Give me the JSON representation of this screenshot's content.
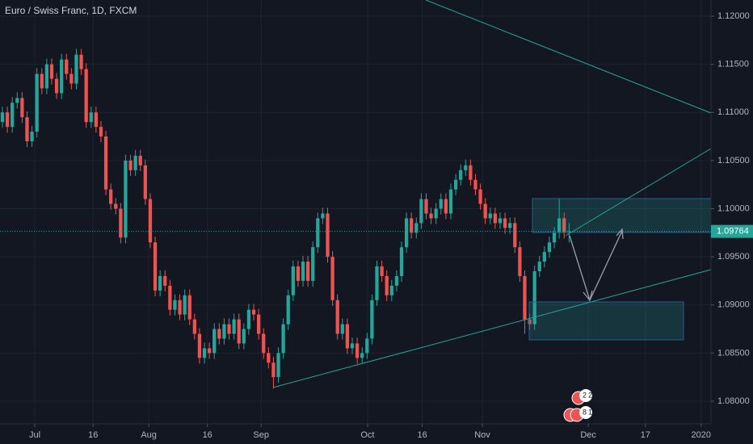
{
  "chart_data": {
    "type": "candlestick",
    "title": "Euro / Swiss Franc, 1D, FXCM",
    "up_color": "#26a69a",
    "down_color": "#ef5350",
    "grid": true,
    "open": [
      1.109,
      1.11,
      1.1085,
      1.111,
      1.1115,
      1.1095,
      1.107,
      1.108,
      1.114,
      1.1125,
      1.115,
      1.1135,
      1.112,
      1.1155,
      1.114,
      1.113,
      1.116,
      1.1145,
      1.109,
      1.11,
      1.1085,
      1.1075,
      1.102,
      1.1005,
      1.1,
      1.097,
      1.105,
      1.104,
      1.1055,
      1.1045,
      1.101,
      1.0965,
      1.0915,
      1.093,
      1.092,
      1.0895,
      1.0905,
      1.089,
      1.091,
      1.0885,
      1.087,
      1.0845,
      1.0855,
      1.085,
      1.0875,
      1.0865,
      1.088,
      1.087,
      1.0885,
      1.086,
      1.0875,
      1.0895,
      1.089,
      1.087,
      1.085,
      1.084,
      1.0825,
      1.085,
      1.088,
      1.091,
      1.094,
      1.0925,
      1.0945,
      1.0925,
      1.096,
      1.099,
      1.0995,
      1.095,
      1.0905,
      1.087,
      1.088,
      1.0855,
      1.086,
      1.0845,
      1.085,
      1.0865,
      1.0905,
      1.094,
      1.093,
      1.091,
      1.092,
      1.093,
      1.096,
      1.099,
      1.0975,
      1.0985,
      1.101,
      1.0995,
      1.099,
      1.1,
      1.101,
      1.0995,
      1.102,
      1.103,
      1.104,
      1.1045,
      1.103,
      1.102,
      1.1005,
      1.099,
      1.0995,
      1.0985,
      1.099,
      1.098,
      1.0985,
      1.096,
      1.093,
      1.0885,
      1.088,
      1.0935,
      1.0945,
      1.0955,
      1.0965,
      1.0975,
      1.099,
      1.0975
    ],
    "high": [
      1.1106,
      1.1106,
      1.1116,
      1.1121,
      1.1121,
      1.1101,
      1.1086,
      1.1146,
      1.1146,
      1.1156,
      1.1156,
      1.1141,
      1.1161,
      1.1161,
      1.1146,
      1.1166,
      1.1166,
      1.1151,
      1.1106,
      1.1106,
      1.1091,
      1.1081,
      1.1026,
      1.1011,
      1.1006,
      1.1056,
      1.1056,
      1.1061,
      1.1061,
      1.1051,
      1.1016,
      1.0971,
      1.0936,
      1.0936,
      1.0926,
      1.0911,
      1.0911,
      1.0916,
      1.0916,
      1.0891,
      1.0876,
      1.0861,
      1.0861,
      1.0881,
      1.0881,
      1.0886,
      1.0886,
      1.0891,
      1.0891,
      1.0881,
      1.0901,
      1.0901,
      1.0896,
      1.0876,
      1.0856,
      1.0846,
      1.0856,
      1.0886,
      1.0916,
      1.0946,
      1.0946,
      1.0951,
      1.0951,
      1.0966,
      1.0996,
      1.1001,
      1.1001,
      1.0956,
      1.0911,
      1.0886,
      1.0886,
      1.0866,
      1.0866,
      1.0856,
      1.0871,
      1.0911,
      1.0946,
      1.0946,
      1.0936,
      1.0926,
      1.0936,
      1.0966,
      1.0996,
      1.0996,
      1.0991,
      1.1016,
      1.1016,
      1.1001,
      1.1006,
      1.1016,
      1.1016,
      1.1026,
      1.1036,
      1.1046,
      1.1051,
      1.1051,
      1.1036,
      1.1026,
      1.1011,
      1.1001,
      1.1001,
      1.0996,
      1.0996,
      1.0991,
      1.0991,
      1.0966,
      1.0936,
      1.0891,
      1.0941,
      1.0951,
      1.0961,
      1.0971,
      1.0981,
      1.101,
      1.0996,
      1.0985
    ],
    "low": [
      1.1084,
      1.1079,
      1.1079,
      1.1104,
      1.1089,
      1.1064,
      1.1064,
      1.1074,
      1.1119,
      1.1119,
      1.1129,
      1.1114,
      1.1114,
      1.1134,
      1.1124,
      1.1124,
      1.1139,
      1.1084,
      1.1084,
      1.1079,
      1.1069,
      1.1014,
      1.0999,
      1.0994,
      1.0964,
      1.0964,
      1.1034,
      1.1034,
      1.1039,
      1.1004,
      1.0959,
      1.0909,
      1.0909,
      1.0914,
      1.0889,
      1.0889,
      1.0884,
      1.0884,
      1.0879,
      1.0864,
      1.0839,
      1.0839,
      1.0844,
      1.0844,
      1.0859,
      1.0859,
      1.0864,
      1.0864,
      1.0854,
      1.0854,
      1.0869,
      1.0884,
      1.0864,
      1.0844,
      1.0834,
      1.0813,
      1.0819,
      1.0844,
      1.0874,
      1.0904,
      1.0919,
      1.0919,
      1.0919,
      1.0919,
      1.0954,
      1.0984,
      1.0944,
      1.0899,
      1.0864,
      1.0864,
      1.0849,
      1.0849,
      1.0839,
      1.0839,
      1.0844,
      1.0859,
      1.0899,
      1.0924,
      1.0904,
      1.0904,
      1.0914,
      1.0924,
      1.0954,
      1.0969,
      1.0969,
      1.0979,
      1.0989,
      1.0984,
      1.0984,
      1.0994,
      1.0989,
      1.0989,
      1.1014,
      1.1024,
      1.1034,
      1.1024,
      1.1014,
      1.0999,
      1.0984,
      1.0984,
      1.0979,
      1.0979,
      1.0974,
      1.0974,
      1.0954,
      1.0924,
      1.087,
      1.0874,
      1.0874,
      1.0929,
      1.0939,
      1.0949,
      1.0959,
      1.0969,
      1.0969,
      1.0965
    ],
    "close": [
      1.11,
      1.1085,
      1.111,
      1.1115,
      1.1095,
      1.107,
      1.108,
      1.114,
      1.1125,
      1.115,
      1.1135,
      1.112,
      1.1155,
      1.114,
      1.113,
      1.116,
      1.1145,
      1.109,
      1.11,
      1.1085,
      1.1075,
      1.102,
      1.1005,
      1.1,
      1.097,
      1.105,
      1.104,
      1.1055,
      1.1045,
      1.101,
      1.0965,
      1.0915,
      1.093,
      1.092,
      1.0895,
      1.0905,
      1.089,
      1.091,
      1.0885,
      1.087,
      1.0845,
      1.0855,
      1.085,
      1.0875,
      1.0865,
      1.088,
      1.087,
      1.0885,
      1.086,
      1.0875,
      1.0895,
      1.089,
      1.087,
      1.085,
      1.084,
      1.0825,
      1.085,
      1.088,
      1.091,
      1.094,
      1.0925,
      1.0945,
      1.0925,
      1.096,
      1.099,
      1.0995,
      1.095,
      1.0905,
      1.087,
      1.088,
      1.0855,
      1.086,
      1.0845,
      1.085,
      1.0865,
      1.0905,
      1.094,
      1.093,
      1.091,
      1.092,
      1.093,
      1.096,
      1.099,
      1.0975,
      1.0985,
      1.101,
      1.0995,
      1.099,
      1.1,
      1.101,
      1.0995,
      1.102,
      1.103,
      1.104,
      1.1045,
      1.103,
      1.102,
      1.1005,
      1.099,
      1.0995,
      1.0985,
      1.099,
      1.098,
      1.0985,
      1.096,
      1.093,
      1.0885,
      1.088,
      1.0935,
      1.0945,
      1.0955,
      1.0965,
      1.0975,
      1.099,
      1.0975,
      1.09764
    ],
    "xlim": [
      -0.49,
      143.8
    ],
    "xticks": [
      {
        "value": 6.56,
        "label": "Jul"
      },
      {
        "value": 18.4,
        "label": "16"
      },
      {
        "value": 29.7,
        "label": "Aug"
      },
      {
        "value": 41.6,
        "label": "16"
      },
      {
        "value": 52.5,
        "label": "Sep"
      },
      {
        "value": 74.1,
        "label": "Oct"
      },
      {
        "value": 85.2,
        "label": "16"
      },
      {
        "value": 97.4,
        "label": "Nov"
      },
      {
        "value": 118.9,
        "label": "Dec"
      },
      {
        "value": 130.5,
        "label": "17"
      },
      {
        "value": 141.8,
        "label": "2020"
      }
    ],
    "ylim": [
      1.07765,
      1.12168
    ],
    "yticks": [
      {
        "value": 1.08,
        "label": "1.08000"
      },
      {
        "value": 1.085,
        "label": "1.08500"
      },
      {
        "value": 1.09,
        "label": "1.09000"
      },
      {
        "value": 1.095,
        "label": "1.09500"
      },
      {
        "value": 1.1,
        "label": "1.10000"
      },
      {
        "value": 1.105,
        "label": "1.10500"
      },
      {
        "value": 1.11,
        "label": "1.11000"
      },
      {
        "value": 1.115,
        "label": "1.11500"
      },
      {
        "value": 1.12,
        "label": "1.12000"
      }
    ],
    "event_badges": [
      "2",
      "2",
      "8",
      "1"
    ]
  }
}
